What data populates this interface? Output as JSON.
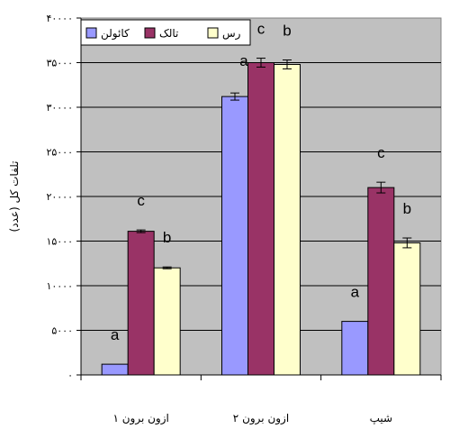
{
  "chart_data": {
    "type": "bar",
    "title": "",
    "xlabel": "",
    "ylabel": "تلفات کل (عدد)",
    "ylim": [
      0,
      40000
    ],
    "yticks": [
      0,
      5000,
      10000,
      15000,
      20000,
      25000,
      30000,
      35000,
      40000
    ],
    "ytick_labels": [
      "۰",
      "۵۰۰۰",
      "۱۰۰۰۰",
      "۱۵۰۰۰",
      "۲۰۰۰۰",
      "۲۵۰۰۰",
      "۳۰۰۰۰",
      "۳۵۰۰۰",
      "۴۰۰۰۰"
    ],
    "grid": true,
    "legend_position": "top",
    "categories": [
      "ازون برون ۱",
      "ازون برون ۲",
      "شیپ"
    ],
    "series": [
      {
        "name": "کائولن",
        "color": "#9999ff",
        "values": [
          1200,
          31200,
          6000
        ],
        "errors": [
          0,
          400,
          0
        ],
        "letters": [
          "a",
          "",
          "a"
        ]
      },
      {
        "name": "تالک",
        "color": "#993366",
        "values": [
          16100,
          35000,
          21000
        ],
        "errors": [
          150,
          500,
          600
        ],
        "letters": [
          "c",
          "c",
          "c"
        ]
      },
      {
        "name": "رس",
        "color": "#ffffcc",
        "values": [
          12000,
          34800,
          14800
        ],
        "errors": [
          100,
          500,
          550
        ],
        "letters": [
          "b",
          "b",
          "b"
        ]
      }
    ],
    "extra_labels": [
      {
        "text": "a",
        "category": 1
      }
    ]
  }
}
